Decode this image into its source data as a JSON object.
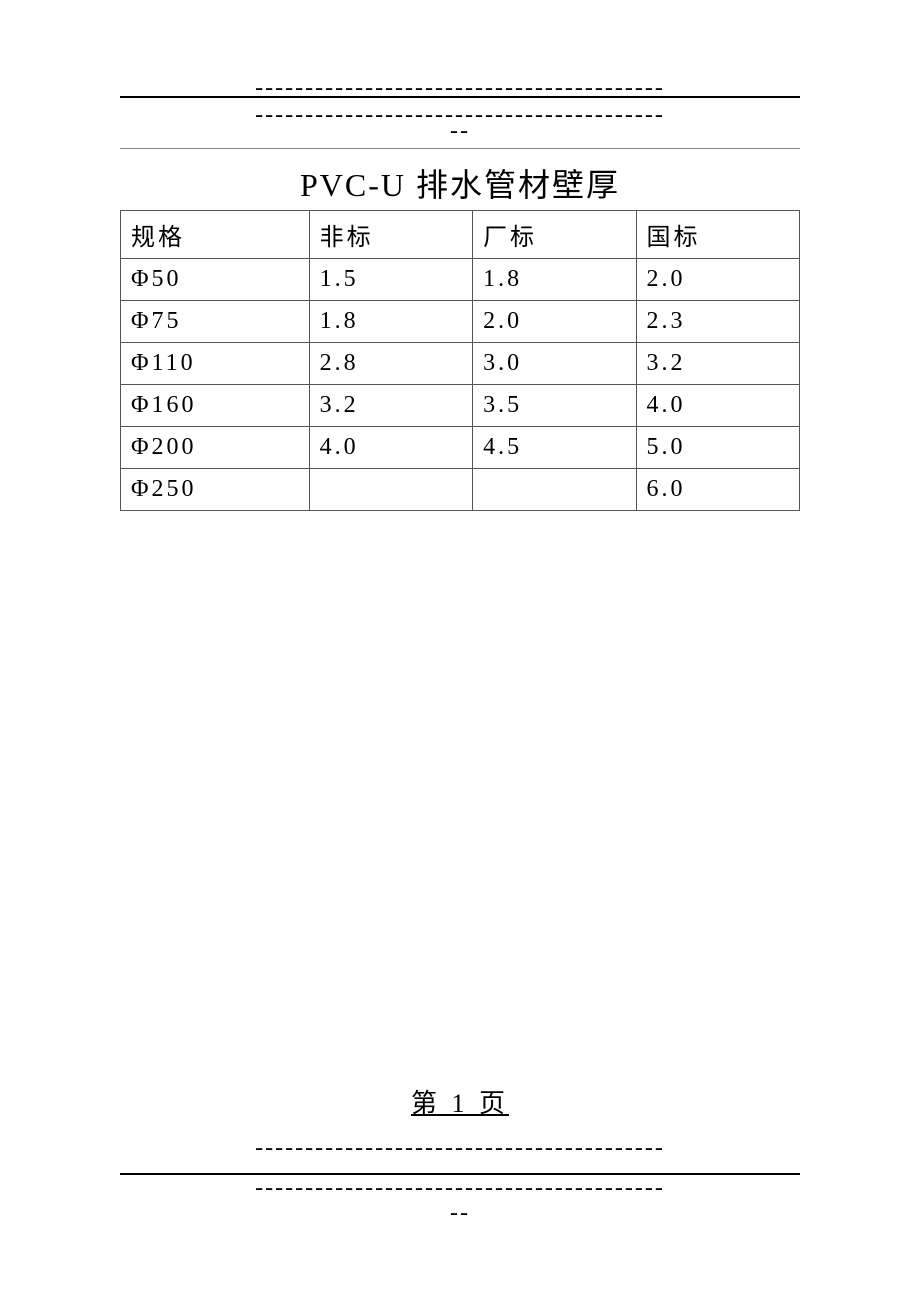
{
  "divider": {
    "dashes_long": "-----------------------------------------",
    "dashes_short": "--"
  },
  "title": "PVC-U 排水管材壁厚",
  "table": {
    "columns": [
      "规格",
      "非标",
      "厂标",
      "国标"
    ],
    "rows": [
      [
        "Φ50",
        "1.5",
        "1.8",
        "2.0"
      ],
      [
        "Φ75",
        "1.8",
        "2.0",
        "2.3"
      ],
      [
        "Φ110",
        "2.8",
        "3.0",
        "3.2"
      ],
      [
        "Φ160",
        "3.2",
        "3.5",
        "4.0"
      ],
      [
        "Φ200",
        "4.0",
        "4.5",
        "5.0"
      ],
      [
        "Φ250",
        "",
        "",
        "6.0"
      ]
    ],
    "border_color": "#555555",
    "cell_fontsize": 24,
    "cell_padding": "6px 10px"
  },
  "page_number": "第 1 页",
  "colors": {
    "background": "#ffffff",
    "text": "#000000",
    "underline_gray": "#888888"
  }
}
